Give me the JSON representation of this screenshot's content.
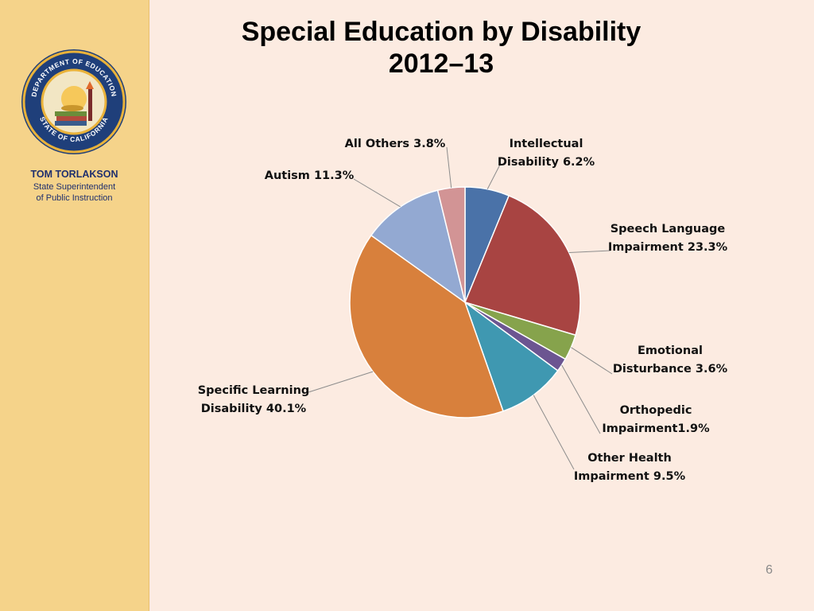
{
  "sidebar": {
    "name": "TOM TORLAKSON",
    "role_line1": "State Superintendent",
    "role_line2": "of Public Instruction",
    "seal_text_top": "DEPARTMENT OF EDUCATION",
    "seal_text_bottom": "STATE OF CALIFORNIA"
  },
  "slide": {
    "title_line1": "Special Education by Disability",
    "title_line2": "2012–13",
    "page_number": "6"
  },
  "chart_data": {
    "type": "pie",
    "title": "Special Education by Disability 2012–13",
    "slices": [
      {
        "label": [
          "Intellectual",
          "Disability 6.2%"
        ],
        "value": 6.2,
        "color": "#4a72a8"
      },
      {
        "label": [
          "Speech Language",
          "Impairment 23.3%"
        ],
        "value": 23.3,
        "color": "#a84442"
      },
      {
        "label": [
          "Emotional",
          "Disturbance 3.6%"
        ],
        "value": 3.6,
        "color": "#86a34c"
      },
      {
        "label": [
          "Orthopedic",
          "Impairment1.9%"
        ],
        "value": 1.9,
        "color": "#6c5591"
      },
      {
        "label": [
          "Other Health",
          "Impairment 9.5%"
        ],
        "value": 9.5,
        "color": "#3f98b1"
      },
      {
        "label": [
          "Specific Learning",
          "Disability 40.1%"
        ],
        "value": 40.1,
        "color": "#d8803c"
      },
      {
        "label": [
          "Autism 11.3%"
        ],
        "value": 11.3,
        "color": "#93a9d2"
      },
      {
        "label": [
          "All Others 3.8%"
        ],
        "value": 3.8,
        "color": "#d29495"
      }
    ],
    "legend": "none"
  },
  "colors": {
    "background": "#fcebe1",
    "sidebar": "#f5d38a",
    "sidebar_text": "#1f2f6e"
  }
}
